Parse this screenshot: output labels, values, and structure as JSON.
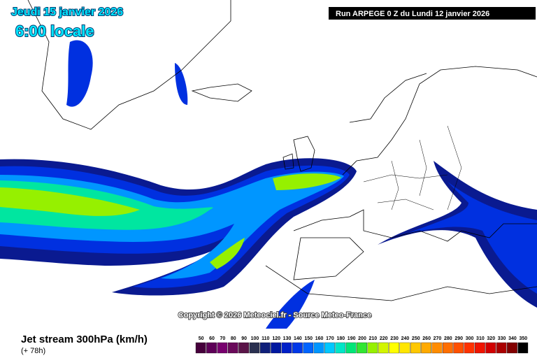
{
  "header": {
    "date": "Jeudi 15 janvier 2026",
    "time": "6:00 locale",
    "run": "Run ARPEGE 0 Z du Lundi 12 janvier 2026"
  },
  "copyright": "Copyright © 2026 Meteociel.fr - Source Meteo-France",
  "footer": {
    "title": "Jet stream 300hPa (km/h)",
    "lead": "(+ 78h)"
  },
  "legend": {
    "stops": [
      {
        "value": "50",
        "color": "#46003c"
      },
      {
        "value": "60",
        "color": "#5e0058"
      },
      {
        "value": "70",
        "color": "#78006e"
      },
      {
        "value": "80",
        "color": "#6a0a5a"
      },
      {
        "value": "90",
        "color": "#5a1448"
      },
      {
        "value": "100",
        "color": "#2a3050"
      },
      {
        "value": "110",
        "color": "#10207a"
      },
      {
        "value": "120",
        "color": "#0018a0"
      },
      {
        "value": "130",
        "color": "#0020c8"
      },
      {
        "value": "140",
        "color": "#0038e8"
      },
      {
        "value": "150",
        "color": "#0064ff"
      },
      {
        "value": "160",
        "color": "#0096ff"
      },
      {
        "value": "170",
        "color": "#00c8ff"
      },
      {
        "value": "180",
        "color": "#00e6c8"
      },
      {
        "value": "190",
        "color": "#00e678"
      },
      {
        "value": "200",
        "color": "#32e632"
      },
      {
        "value": "210",
        "color": "#96f000"
      },
      {
        "value": "220",
        "color": "#d2f500"
      },
      {
        "value": "230",
        "color": "#ffff00"
      },
      {
        "value": "240",
        "color": "#ffe600"
      },
      {
        "value": "250",
        "color": "#ffc800"
      },
      {
        "value": "260",
        "color": "#ffaa00"
      },
      {
        "value": "270",
        "color": "#ff8c00"
      },
      {
        "value": "280",
        "color": "#ff6e00"
      },
      {
        "value": "290",
        "color": "#ff5000"
      },
      {
        "value": "300",
        "color": "#ff3200"
      },
      {
        "value": "310",
        "color": "#f01400"
      },
      {
        "value": "320",
        "color": "#d20000"
      },
      {
        "value": "330",
        "color": "#aa0000"
      },
      {
        "value": "340",
        "color": "#820000"
      },
      {
        "value": "350",
        "color": "#000000"
      }
    ]
  }
}
